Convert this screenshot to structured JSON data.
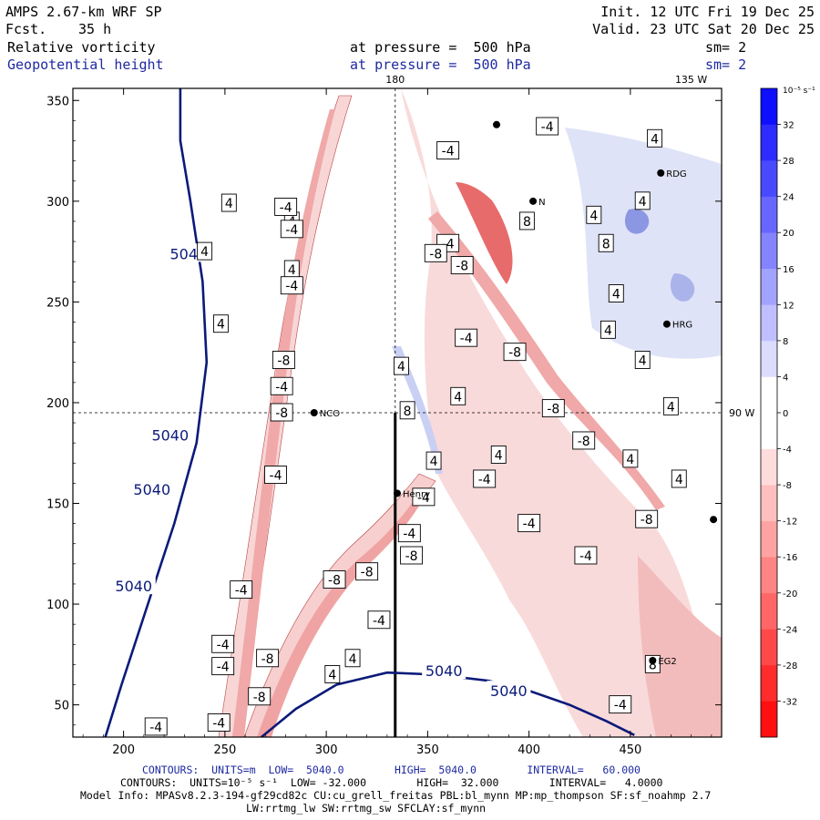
{
  "header": {
    "model": "AMPS 2.67-km WRF SP",
    "fcst_label": "Fcst.",
    "fcst_value": "35 h",
    "init": "Init. 12 UTC Fri 19 Dec 25",
    "valid": "Valid. 23 UTC Sat 20 Dec 25",
    "field1": "Relative vorticity",
    "field2": "Geopotential height",
    "pressure1": "at pressure =  500 hPa",
    "pressure2": "at pressure =  500 hPa",
    "sm1": "sm= 2",
    "sm2": "sm= 2"
  },
  "footer": {
    "line1": "CONTOURS:  UNITS=m  LOW=  5040.0        HIGH=  5040.0        INTERVAL=   60.000",
    "line2": "CONTOURS:  UNITS=10⁻⁵ s⁻¹  LOW= -32.000        HIGH=  32.000        INTERVAL=   4.0000",
    "line3": "Model Info: MPASv8.2.3-194-gf29cd82c CU:cu_grell_freitas PBL:bl_mynn MP:mp_thompson SF:sf_noahmp 2.7",
    "line4": "LW:rrtmg_lw SW:rrtmg_sw SFCLAY:sf_mynn"
  },
  "colors": {
    "height_contour": "#0b1a7a",
    "neg_vort": "#f6c9c9",
    "pos_vort": "#c9d0f4"
  },
  "chart_data": {
    "type": "contour-map",
    "xlim": [
      175,
      495
    ],
    "ylim": [
      34,
      356
    ],
    "xticks": [
      200,
      250,
      300,
      350,
      400,
      450
    ],
    "yticks": [
      50,
      100,
      150,
      200,
      250,
      300,
      350
    ],
    "meridian_labels": [
      {
        "text": "180",
        "x": 334
      },
      {
        "text": "135 W",
        "x": 480
      }
    ],
    "parallel_label": {
      "text": "90 W",
      "y": 195
    },
    "height_contours": [
      {
        "value": 5040,
        "points": [
          [
            191,
            34
          ],
          [
            199,
            60
          ],
          [
            212,
            100
          ],
          [
            225,
            140
          ],
          [
            236,
            180
          ],
          [
            241,
            220
          ],
          [
            239,
            260
          ],
          [
            233,
            300
          ],
          [
            228,
            330
          ],
          [
            228,
            356
          ]
        ]
      },
      {
        "value": 5040,
        "points": [
          [
            268,
            34
          ],
          [
            285,
            48
          ],
          [
            305,
            60
          ],
          [
            330,
            66
          ],
          [
            355,
            65
          ],
          [
            380,
            62
          ],
          [
            400,
            57
          ],
          [
            420,
            50
          ],
          [
            438,
            42
          ],
          [
            452,
            35
          ]
        ]
      }
    ],
    "height_labels": [
      {
        "text": "5040",
        "x": 232,
        "y": 274
      },
      {
        "text": "5040",
        "x": 223,
        "y": 184
      },
      {
        "text": "5040",
        "x": 214,
        "y": 157
      },
      {
        "text": "5040",
        "x": 205,
        "y": 109
      },
      {
        "text": "5040",
        "x": 358,
        "y": 67
      },
      {
        "text": "5040",
        "x": 390,
        "y": 57
      }
    ],
    "vorticity_labels": [
      {
        "v": "4",
        "x": 252,
        "y": 299
      },
      {
        "v": "4",
        "x": 240,
        "y": 275
      },
      {
        "v": "4",
        "x": 283,
        "y": 290
      },
      {
        "v": "4",
        "x": 283,
        "y": 266
      },
      {
        "v": "4",
        "x": 248,
        "y": 239
      },
      {
        "v": "-4",
        "x": 280,
        "y": 297
      },
      {
        "v": "-4",
        "x": 283,
        "y": 286
      },
      {
        "v": "-4",
        "x": 283,
        "y": 258
      },
      {
        "v": "-8",
        "x": 279,
        "y": 221
      },
      {
        "v": "-4",
        "x": 278,
        "y": 208
      },
      {
        "v": "-8",
        "x": 278,
        "y": 195
      },
      {
        "v": "-4",
        "x": 275,
        "y": 164
      },
      {
        "v": "-4",
        "x": 258,
        "y": 107
      },
      {
        "v": "-4",
        "x": 249,
        "y": 80
      },
      {
        "v": "-4",
        "x": 249,
        "y": 69
      },
      {
        "v": "-4",
        "x": 247,
        "y": 41
      },
      {
        "v": "-4",
        "x": 216,
        "y": 39
      },
      {
        "v": "-8",
        "x": 271,
        "y": 73
      },
      {
        "v": "-8",
        "x": 267,
        "y": 54
      },
      {
        "v": "4",
        "x": 303,
        "y": 65
      },
      {
        "v": "4",
        "x": 313,
        "y": 73
      },
      {
        "v": "-4",
        "x": 326,
        "y": 92
      },
      {
        "v": "-8",
        "x": 304,
        "y": 112
      },
      {
        "v": "-8",
        "x": 320,
        "y": 116
      },
      {
        "v": "-8",
        "x": 342,
        "y": 124
      },
      {
        "v": "-4",
        "x": 341,
        "y": 135
      },
      {
        "v": "-4",
        "x": 348,
        "y": 153
      },
      {
        "v": "4",
        "x": 353,
        "y": 171
      },
      {
        "v": "8",
        "x": 340,
        "y": 196
      },
      {
        "v": "4",
        "x": 337,
        "y": 218
      },
      {
        "v": "4",
        "x": 365,
        "y": 203
      },
      {
        "v": "4",
        "x": 385,
        "y": 174
      },
      {
        "v": "-4",
        "x": 378,
        "y": 162
      },
      {
        "v": "-4",
        "x": 369,
        "y": 232
      },
      {
        "v": "-8",
        "x": 393,
        "y": 225
      },
      {
        "v": "-8",
        "x": 412,
        "y": 197
      },
      {
        "v": "-8",
        "x": 427,
        "y": 181
      },
      {
        "v": "4",
        "x": 450,
        "y": 172
      },
      {
        "v": "-4",
        "x": 400,
        "y": 140
      },
      {
        "v": "-4",
        "x": 428,
        "y": 124
      },
      {
        "v": "-8",
        "x": 458,
        "y": 142
      },
      {
        "v": "4",
        "x": 443,
        "y": 254
      },
      {
        "v": "4",
        "x": 439,
        "y": 236
      },
      {
        "v": "4",
        "x": 456,
        "y": 221
      },
      {
        "v": "4",
        "x": 474,
        "y": 162
      },
      {
        "v": "4",
        "x": 470,
        "y": 198
      },
      {
        "v": "-4",
        "x": 445,
        "y": 50
      },
      {
        "v": "8",
        "x": 461,
        "y": 70
      },
      {
        "v": "-4",
        "x": 409,
        "y": 337
      },
      {
        "v": "-4",
        "x": 360,
        "y": 325
      },
      {
        "v": "-4",
        "x": 360,
        "y": 279
      },
      {
        "v": "-8",
        "x": 354,
        "y": 274
      },
      {
        "v": "-8",
        "x": 367,
        "y": 268
      },
      {
        "v": "8",
        "x": 399,
        "y": 290
      },
      {
        "v": "4",
        "x": 456,
        "y": 300
      },
      {
        "v": "4",
        "x": 462,
        "y": 331
      },
      {
        "v": "4",
        "x": 432,
        "y": 293
      },
      {
        "v": "8",
        "x": 438,
        "y": 279
      }
    ],
    "stations": [
      {
        "name": "NCO",
        "x": 294,
        "y": 195
      },
      {
        "name": "Henry",
        "x": 335,
        "y": 155
      },
      {
        "name": "N",
        "x": 402,
        "y": 300
      },
      {
        "name": "RDG",
        "x": 465,
        "y": 314
      },
      {
        "name": "HRG",
        "x": 468,
        "y": 239
      },
      {
        "name": "EG2",
        "x": 461,
        "y": 72
      },
      {
        "name": "",
        "x": 491,
        "y": 142
      },
      {
        "name": "",
        "x": 384,
        "y": 338
      }
    ],
    "transect": [
      [
        334,
        34
      ],
      [
        334,
        195
      ]
    ],
    "colorbar": {
      "unit": "10⁻⁵ s⁻¹",
      "min": -36,
      "max": 36,
      "step": 4,
      "labels": [
        32,
        28,
        24,
        20,
        16,
        12,
        8,
        4,
        0,
        -4,
        -8,
        -12,
        -16,
        -20,
        -24,
        -28,
        -32
      ]
    }
  }
}
